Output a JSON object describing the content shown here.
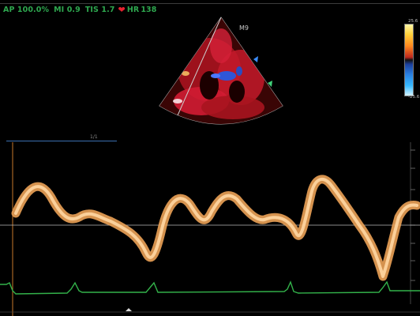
{
  "status": {
    "ap": "AP 100.0%",
    "mi": "MI 0.9",
    "tis": "TIS 1.7",
    "hr_label": "HR",
    "hr_value": "138"
  },
  "probe": {
    "mode": "M9"
  },
  "colorbar": {
    "top": "25.6",
    "bottom": "-25.6"
  },
  "sweep": {
    "label": "1/1"
  },
  "colors": {
    "status_green": "#2ea84f",
    "heart_red": "#e8222f",
    "trace_orange": "#f2b877",
    "ecg_green": "#33b24a"
  }
}
